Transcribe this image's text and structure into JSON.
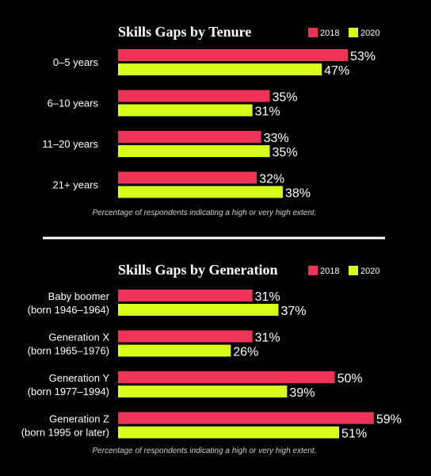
{
  "chart_data": [
    {
      "type": "bar",
      "orientation": "horizontal",
      "title": "Skills Gaps by Tenure",
      "categories": [
        "0–5 years",
        "6–10 years",
        "11–20 years",
        "21+ years"
      ],
      "series": [
        {
          "name": "2018",
          "values": [
            53,
            35,
            33,
            32
          ]
        },
        {
          "name": "2020",
          "values": [
            47,
            31,
            35,
            38
          ]
        }
      ],
      "value_suffix": "%",
      "note": "Percentage of respondents indicating a high or very high extent.",
      "legend_position": "top-right",
      "grid": false
    },
    {
      "type": "bar",
      "orientation": "horizontal",
      "title": "Skills Gaps by Generation",
      "categories": [
        [
          "Baby boomer",
          "(born 1946–1964)"
        ],
        [
          "Generation X",
          "(born 1965–1976)"
        ],
        [
          "Generation Y",
          "(born 1977–1994)"
        ],
        [
          "Generation Z",
          "(born 1995 or later)"
        ]
      ],
      "series": [
        {
          "name": "2018",
          "values": [
            31,
            31,
            50,
            59
          ]
        },
        {
          "name": "2020",
          "values": [
            37,
            26,
            39,
            51
          ]
        }
      ],
      "value_suffix": "%",
      "note": "Percentage of respondents indicating a high or very high extent.",
      "legend_position": "top-right",
      "grid": false
    }
  ],
  "colors": {
    "series_2018": "#EE3356",
    "series_2020": "#D7FF1A",
    "background": "#000000",
    "divider": "#FFFFFF"
  }
}
